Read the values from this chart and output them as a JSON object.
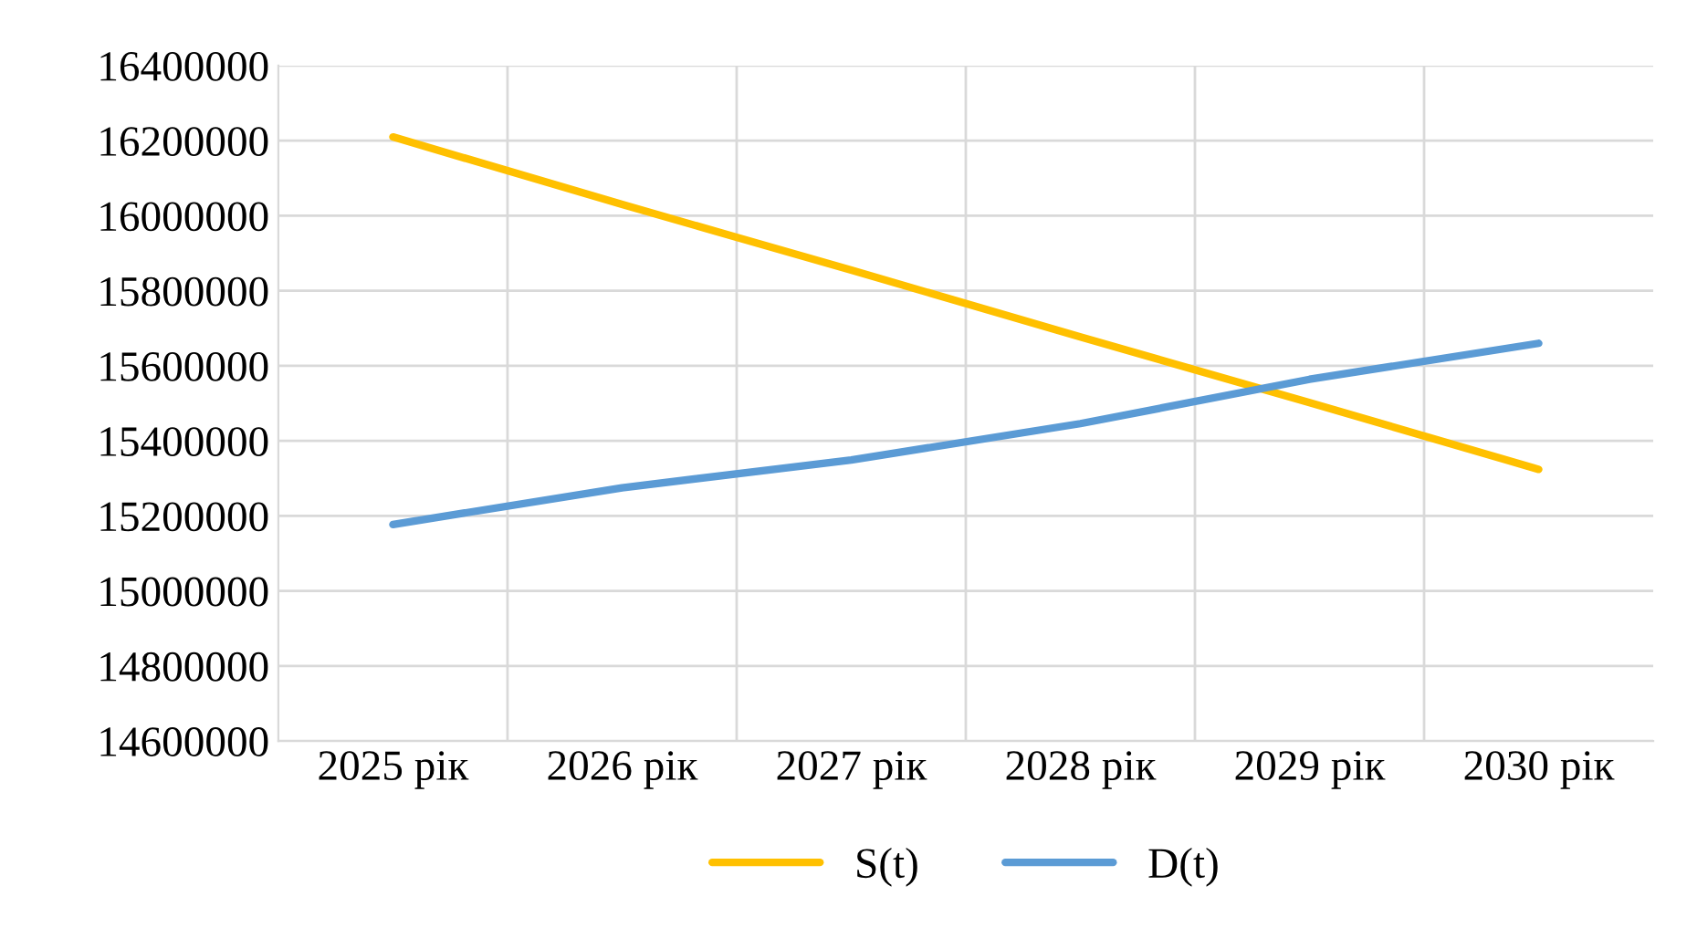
{
  "chart_data": {
    "type": "line",
    "categories": [
      "2025 рік",
      "2026 рік",
      "2027 рік",
      "2028 рік",
      "2029 рік",
      "2030 рік"
    ],
    "series": [
      {
        "name": "S(t)",
        "color": "#ffc000",
        "values": [
          16210000,
          16030000,
          15855000,
          15677000,
          15502000,
          15324000
        ]
      },
      {
        "name": "D(t)",
        "color": "#5b9bd5",
        "values": [
          15177000,
          15275000,
          15349000,
          15446000,
          15564000,
          15660000
        ]
      }
    ],
    "ylim": [
      14600000,
      16400000
    ],
    "yticks": [
      14600000,
      14800000,
      15000000,
      15200000,
      15400000,
      15600000,
      15800000,
      16000000,
      16200000,
      16400000
    ],
    "grid": true,
    "legend": "bottom",
    "marker": "none",
    "line_style": "solid"
  }
}
